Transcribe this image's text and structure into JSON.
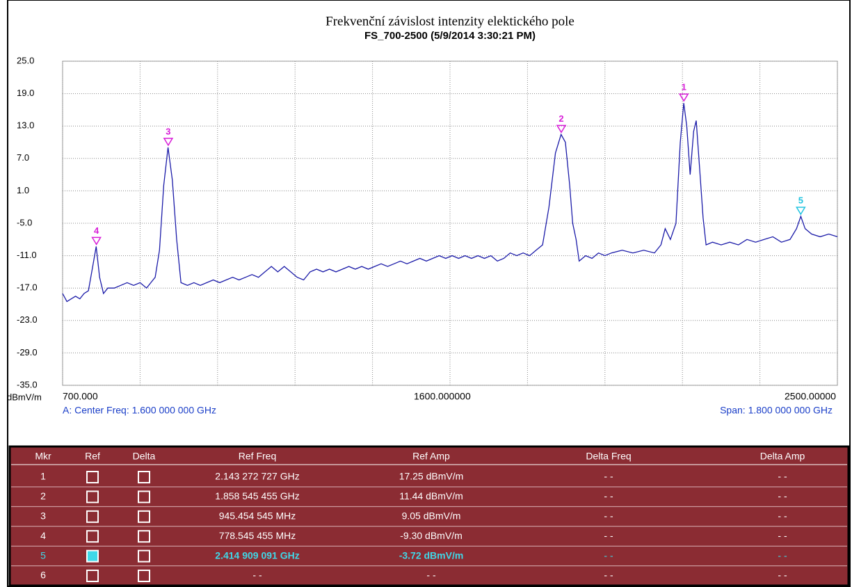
{
  "chart_data": {
    "type": "line",
    "title": "Frekvenční závislost intenzity elektického pole",
    "subtitle": "FS_700-2500 (5/9/2014 3:30:21 PM)",
    "ylabel": "dBmV/m",
    "center_label": "A: Center Freq: 1.600 000 000 GHz",
    "span_label": "Span: 1.800 000 000 GHz",
    "xlim": [
      700,
      2500
    ],
    "ylim": [
      -35,
      25
    ],
    "yticks": [
      {
        "value": 25,
        "label": "25.0"
      },
      {
        "value": 19,
        "label": "19.0"
      },
      {
        "value": 13,
        "label": "13.0"
      },
      {
        "value": 7,
        "label": "7.0"
      },
      {
        "value": 1,
        "label": "1.0"
      },
      {
        "value": -5,
        "label": "-5.0"
      },
      {
        "value": -11,
        "label": "-11.0"
      },
      {
        "value": -17,
        "label": "-17.0"
      },
      {
        "value": -23,
        "label": "-23.0"
      },
      {
        "value": -29,
        "label": "-29.0"
      },
      {
        "value": -35,
        "label": "-35.0"
      }
    ],
    "xticks": [
      {
        "value": 700,
        "label": "700.000"
      },
      {
        "value": 1600,
        "label": "1600.000000"
      },
      {
        "value": 2500,
        "label": "2500.00000"
      }
    ],
    "xgrid": [
      700,
      880,
      1060,
      1240,
      1420,
      1600,
      1780,
      1960,
      2140,
      2320,
      2500
    ],
    "grid": true,
    "x": [
      700,
      710,
      720,
      730,
      740,
      750,
      760,
      770,
      778,
      786,
      795,
      805,
      820,
      835,
      850,
      865,
      880,
      895,
      905,
      915,
      925,
      935,
      945,
      955,
      965,
      975,
      990,
      1005,
      1020,
      1035,
      1050,
      1065,
      1080,
      1095,
      1110,
      1125,
      1140,
      1155,
      1170,
      1185,
      1200,
      1215,
      1230,
      1245,
      1260,
      1275,
      1290,
      1305,
      1320,
      1335,
      1350,
      1365,
      1380,
      1395,
      1410,
      1425,
      1440,
      1455,
      1470,
      1485,
      1500,
      1515,
      1530,
      1545,
      1560,
      1575,
      1590,
      1605,
      1620,
      1635,
      1650,
      1665,
      1680,
      1695,
      1710,
      1725,
      1740,
      1755,
      1770,
      1785,
      1800,
      1815,
      1830,
      1845,
      1858,
      1868,
      1878,
      1885,
      1893,
      1900,
      1915,
      1930,
      1945,
      1960,
      1975,
      2000,
      2025,
      2050,
      2075,
      2090,
      2100,
      2112,
      2125,
      2135,
      2143,
      2150,
      2158,
      2166,
      2172,
      2180,
      2188,
      2195,
      2210,
      2230,
      2250,
      2270,
      2290,
      2310,
      2330,
      2350,
      2370,
      2390,
      2405,
      2415,
      2425,
      2440,
      2460,
      2480,
      2500
    ],
    "series": [
      {
        "color": "#1a1aa8",
        "values": [
          -18,
          -19.5,
          -19,
          -18.5,
          -19,
          -18,
          -17.5,
          -13,
          -9.3,
          -15,
          -18,
          -17,
          -17,
          -16.5,
          -16,
          -16.5,
          -16,
          -17,
          -16,
          -15,
          -10,
          2,
          9.05,
          3,
          -8,
          -16,
          -16.5,
          -16,
          -16.5,
          -16,
          -15.5,
          -16,
          -15.5,
          -15,
          -15.5,
          -15,
          -14.5,
          -15,
          -14,
          -13,
          -14,
          -13,
          -14,
          -15,
          -15.5,
          -14,
          -13.5,
          -14,
          -13.5,
          -14,
          -13.5,
          -13,
          -13.5,
          -13,
          -13.5,
          -13,
          -12.5,
          -13,
          -12.5,
          -12,
          -12.5,
          -12,
          -11.5,
          -12,
          -11.5,
          -11,
          -11.5,
          -11,
          -11.5,
          -11,
          -11.5,
          -11,
          -11.5,
          -11,
          -12,
          -11.5,
          -10.5,
          -11,
          -10.5,
          -11,
          -10,
          -9,
          -2,
          8,
          11.44,
          10,
          2,
          -5,
          -8,
          -12,
          -11,
          -11.5,
          -10.5,
          -11,
          -10.5,
          -10,
          -10.5,
          -10,
          -10.5,
          -9,
          -6,
          -8,
          -5,
          10,
          17.25,
          13,
          4,
          12,
          14,
          5,
          -4,
          -9,
          -8.5,
          -9,
          -8.5,
          -9,
          -8,
          -8.5,
          -8,
          -7.5,
          -8.5,
          -8,
          -6,
          -3.72,
          -6,
          -7,
          -7.5,
          -7,
          -7.5
        ]
      }
    ],
    "markers": [
      {
        "label": "1",
        "x": 2143.272727,
        "y": 17.25,
        "color": "#d81ed8"
      },
      {
        "label": "2",
        "x": 1858.545455,
        "y": 11.44,
        "color": "#d81ed8"
      },
      {
        "label": "3",
        "x": 945.454545,
        "y": 9.05,
        "color": "#d81ed8"
      },
      {
        "label": "4",
        "x": 778.545455,
        "y": -9.3,
        "color": "#d81ed8"
      },
      {
        "label": "5",
        "x": 2414.909091,
        "y": -3.72,
        "color": "#22c4e0"
      }
    ]
  },
  "table": {
    "header": [
      "Mkr",
      "Ref",
      "Delta",
      "Ref Freq",
      "Ref Amp",
      "Delta Freq",
      "Delta Amp"
    ],
    "rows": [
      {
        "mkr": "1",
        "ref_freq": "2.143 272 727 GHz",
        "ref_amp": "17.25 dBmV/m",
        "delta_freq": "- -",
        "delta_amp": "- -",
        "selected": false
      },
      {
        "mkr": "2",
        "ref_freq": "1.858 545 455 GHz",
        "ref_amp": "11.44 dBmV/m",
        "delta_freq": "- -",
        "delta_amp": "- -",
        "selected": false
      },
      {
        "mkr": "3",
        "ref_freq": "945.454 545 MHz",
        "ref_amp": "9.05 dBmV/m",
        "delta_freq": "- -",
        "delta_amp": "- -",
        "selected": false
      },
      {
        "mkr": "4",
        "ref_freq": "778.545 455 MHz",
        "ref_amp": "-9.30 dBmV/m",
        "delta_freq": "- -",
        "delta_amp": "- -",
        "selected": false
      },
      {
        "mkr": "5",
        "ref_freq": "2.414 909 091 GHz",
        "ref_amp": "-3.72 dBmV/m",
        "delta_freq": "- -",
        "delta_amp": "- -",
        "selected": true
      },
      {
        "mkr": "6",
        "ref_freq": "- -",
        "ref_amp": "- -",
        "delta_freq": "- -",
        "delta_amp": "- -",
        "selected": false
      }
    ]
  }
}
